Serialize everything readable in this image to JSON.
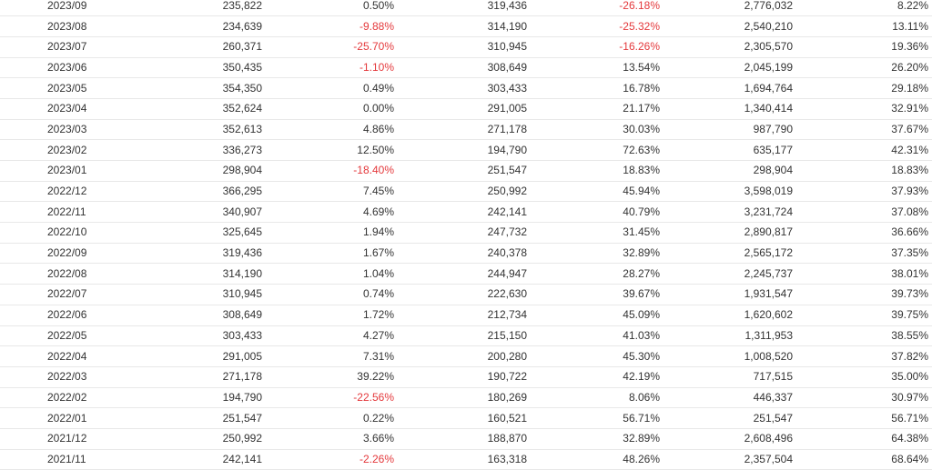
{
  "table": {
    "rows": [
      {
        "month": "2023/09",
        "v1": "235,822",
        "p1": "0.50%",
        "v2": "319,436",
        "p2": "-26.18%",
        "v3": "2,776,032",
        "p3": "8.22%"
      },
      {
        "month": "2023/08",
        "v1": "234,639",
        "p1": "-9.88%",
        "v2": "314,190",
        "p2": "-25.32%",
        "v3": "2,540,210",
        "p3": "13.11%"
      },
      {
        "month": "2023/07",
        "v1": "260,371",
        "p1": "-25.70%",
        "v2": "310,945",
        "p2": "-16.26%",
        "v3": "2,305,570",
        "p3": "19.36%"
      },
      {
        "month": "2023/06",
        "v1": "350,435",
        "p1": "-1.10%",
        "v2": "308,649",
        "p2": "13.54%",
        "v3": "2,045,199",
        "p3": "26.20%"
      },
      {
        "month": "2023/05",
        "v1": "354,350",
        "p1": "0.49%",
        "v2": "303,433",
        "p2": "16.78%",
        "v3": "1,694,764",
        "p3": "29.18%"
      },
      {
        "month": "2023/04",
        "v1": "352,624",
        "p1": "0.00%",
        "v2": "291,005",
        "p2": "21.17%",
        "v3": "1,340,414",
        "p3": "32.91%"
      },
      {
        "month": "2023/03",
        "v1": "352,613",
        "p1": "4.86%",
        "v2": "271,178",
        "p2": "30.03%",
        "v3": "987,790",
        "p3": "37.67%"
      },
      {
        "month": "2023/02",
        "v1": "336,273",
        "p1": "12.50%",
        "v2": "194,790",
        "p2": "72.63%",
        "v3": "635,177",
        "p3": "42.31%"
      },
      {
        "month": "2023/01",
        "v1": "298,904",
        "p1": "-18.40%",
        "v2": "251,547",
        "p2": "18.83%",
        "v3": "298,904",
        "p3": "18.83%"
      },
      {
        "month": "2022/12",
        "v1": "366,295",
        "p1": "7.45%",
        "v2": "250,992",
        "p2": "45.94%",
        "v3": "3,598,019",
        "p3": "37.93%"
      },
      {
        "month": "2022/11",
        "v1": "340,907",
        "p1": "4.69%",
        "v2": "242,141",
        "p2": "40.79%",
        "v3": "3,231,724",
        "p3": "37.08%"
      },
      {
        "month": "2022/10",
        "v1": "325,645",
        "p1": "1.94%",
        "v2": "247,732",
        "p2": "31.45%",
        "v3": "2,890,817",
        "p3": "36.66%"
      },
      {
        "month": "2022/09",
        "v1": "319,436",
        "p1": "1.67%",
        "v2": "240,378",
        "p2": "32.89%",
        "v3": "2,565,172",
        "p3": "37.35%"
      },
      {
        "month": "2022/08",
        "v1": "314,190",
        "p1": "1.04%",
        "v2": "244,947",
        "p2": "28.27%",
        "v3": "2,245,737",
        "p3": "38.01%"
      },
      {
        "month": "2022/07",
        "v1": "310,945",
        "p1": "0.74%",
        "v2": "222,630",
        "p2": "39.67%",
        "v3": "1,931,547",
        "p3": "39.73%"
      },
      {
        "month": "2022/06",
        "v1": "308,649",
        "p1": "1.72%",
        "v2": "212,734",
        "p2": "45.09%",
        "v3": "1,620,602",
        "p3": "39.75%"
      },
      {
        "month": "2022/05",
        "v1": "303,433",
        "p1": "4.27%",
        "v2": "215,150",
        "p2": "41.03%",
        "v3": "1,311,953",
        "p3": "38.55%"
      },
      {
        "month": "2022/04",
        "v1": "291,005",
        "p1": "7.31%",
        "v2": "200,280",
        "p2": "45.30%",
        "v3": "1,008,520",
        "p3": "37.82%"
      },
      {
        "month": "2022/03",
        "v1": "271,178",
        "p1": "39.22%",
        "v2": "190,722",
        "p2": "42.19%",
        "v3": "717,515",
        "p3": "35.00%"
      },
      {
        "month": "2022/02",
        "v1": "194,790",
        "p1": "-22.56%",
        "v2": "180,269",
        "p2": "8.06%",
        "v3": "446,337",
        "p3": "30.97%"
      },
      {
        "month": "2022/01",
        "v1": "251,547",
        "p1": "0.22%",
        "v2": "160,521",
        "p2": "56.71%",
        "v3": "251,547",
        "p3": "56.71%"
      },
      {
        "month": "2021/12",
        "v1": "250,992",
        "p1": "3.66%",
        "v2": "188,870",
        "p2": "32.89%",
        "v3": "2,608,496",
        "p3": "64.38%"
      },
      {
        "month": "2021/11",
        "v1": "242,141",
        "p1": "-2.26%",
        "v2": "163,318",
        "p2": "48.26%",
        "v3": "2,357,504",
        "p3": "68.64%"
      }
    ]
  },
  "colors": {
    "negative": "#e4393c",
    "text": "#333333",
    "row_border": "#e8e8e8"
  }
}
